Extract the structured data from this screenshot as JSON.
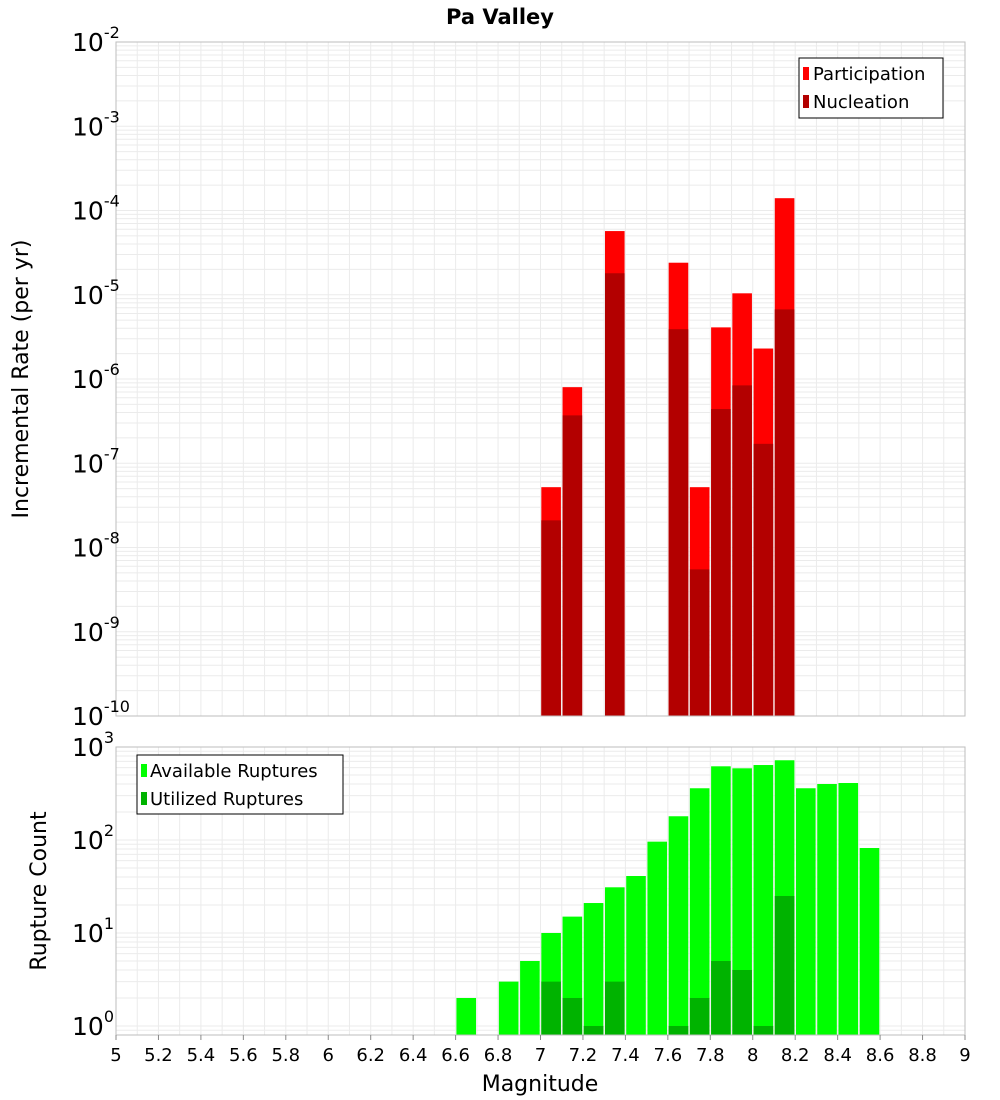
{
  "title": "Pa Valley",
  "xlabel": "Magnitude",
  "colors": {
    "participation": "#ff0000",
    "nucleation": "#b30000",
    "available": "#00ff00",
    "utilized": "#00b300",
    "grid": "#ebebeb",
    "frame": "#bdbdbd"
  },
  "x_ticks": [
    "5",
    "5.2",
    "5.4",
    "5.6",
    "5.8",
    "6",
    "6.2",
    "6.4",
    "6.6",
    "6.8",
    "7",
    "7.2",
    "7.4",
    "7.6",
    "7.8",
    "8",
    "8.2",
    "8.4",
    "8.6",
    "8.8",
    "9"
  ],
  "chart_data": [
    {
      "type": "bar",
      "title": "Pa Valley",
      "xlabel": "",
      "ylabel": "Incremental Rate (per yr)",
      "y_scale": "log",
      "xlim": [
        5,
        9
      ],
      "ylim": [
        1e-10,
        0.01
      ],
      "y_ticks": [
        {
          "base": "10",
          "exp": "-10"
        },
        {
          "base": "10",
          "exp": "-9"
        },
        {
          "base": "10",
          "exp": "-8"
        },
        {
          "base": "10",
          "exp": "-7"
        },
        {
          "base": "10",
          "exp": "-6"
        },
        {
          "base": "10",
          "exp": "-5"
        },
        {
          "base": "10",
          "exp": "-4"
        },
        {
          "base": "10",
          "exp": "-3"
        },
        {
          "base": "10",
          "exp": "-2"
        }
      ],
      "legend_position": "top-right",
      "grid": true,
      "x": [
        7.05,
        7.15,
        7.35,
        7.65,
        7.75,
        7.85,
        7.95,
        8.05,
        8.15
      ],
      "series": [
        {
          "name": "Participation",
          "values": [
            5.2e-08,
            8e-07,
            5.7e-05,
            2.4e-05,
            5.2e-08,
            4.1e-06,
            1.04e-05,
            2.3e-06,
            0.00014
          ]
        },
        {
          "name": "Nucleation",
          "values": [
            2.1e-08,
            3.7e-07,
            1.8e-05,
            3.9e-06,
            5.5e-09,
            4.4e-07,
            8.4e-07,
            1.7e-07,
            6.7e-06
          ]
        }
      ]
    },
    {
      "type": "bar",
      "title": "",
      "xlabel": "Magnitude",
      "ylabel": "Rupture Count",
      "y_scale": "log",
      "xlim": [
        5,
        9
      ],
      "ylim": [
        0.8,
        1000
      ],
      "y_ticks": [
        {
          "base": "10",
          "exp": "0"
        },
        {
          "base": "10",
          "exp": "1"
        },
        {
          "base": "10",
          "exp": "2"
        },
        {
          "base": "10",
          "exp": "3"
        }
      ],
      "legend_position": "top-left",
      "grid": true,
      "series": [
        {
          "name": "Available Ruptures",
          "x": [
            6.65,
            6.85,
            6.95,
            7.05,
            7.15,
            7.25,
            7.35,
            7.45,
            7.55,
            7.65,
            7.75,
            7.85,
            7.95,
            8.05,
            8.15,
            8.25,
            8.35,
            8.45,
            8.55
          ],
          "values": [
            2,
            3,
            5,
            10,
            15,
            21,
            31,
            41,
            96,
            180,
            360,
            620,
            590,
            640,
            720,
            360,
            400,
            410,
            82
          ]
        },
        {
          "name": "Utilized Ruptures",
          "x": [
            7.05,
            7.15,
            7.25,
            7.35,
            7.65,
            7.75,
            7.85,
            7.95,
            8.05,
            8.15
          ],
          "values": [
            3,
            2,
            1,
            3,
            1,
            2,
            5,
            4,
            1,
            25
          ]
        }
      ]
    }
  ]
}
